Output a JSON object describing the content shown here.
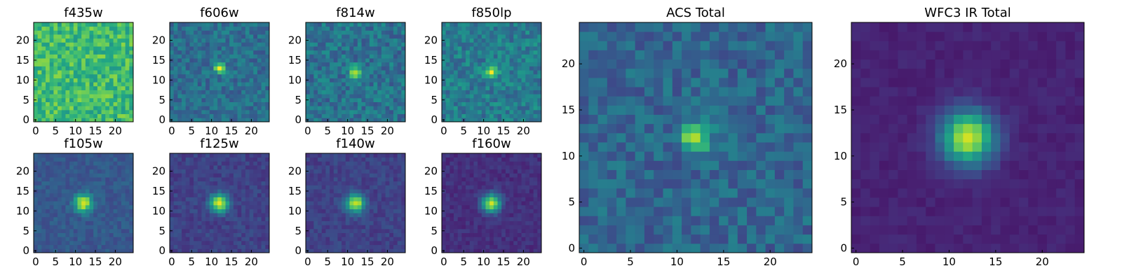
{
  "chart_data": {
    "type": "heatmap",
    "colormap": "viridis",
    "grid": false,
    "panels": [
      {
        "title": "f435w",
        "xlim": [
          0,
          24
        ],
        "ylim": [
          0,
          24
        ],
        "xticks": [
          0,
          5,
          10,
          15,
          20
        ],
        "yticks": [
          0,
          5,
          10,
          15,
          20
        ],
        "source_peak": [
          12,
          12
        ],
        "source_strength": 0.05,
        "source_sigma": 1.0,
        "background_level": 0.68,
        "noise_level": 0.3
      },
      {
        "title": "f606w",
        "xlim": [
          0,
          24
        ],
        "ylim": [
          0,
          24
        ],
        "xticks": [
          0,
          5,
          10,
          15,
          20
        ],
        "yticks": [
          0,
          5,
          10,
          15,
          20
        ],
        "source_peak": [
          12,
          13
        ],
        "source_strength": 0.62,
        "source_sigma": 0.9,
        "background_level": 0.36,
        "noise_level": 0.22
      },
      {
        "title": "f814w",
        "xlim": [
          0,
          24
        ],
        "ylim": [
          0,
          24
        ],
        "xticks": [
          0,
          5,
          10,
          15,
          20
        ],
        "yticks": [
          0,
          5,
          10,
          15,
          20
        ],
        "source_peak": [
          12,
          12
        ],
        "source_strength": 0.6,
        "source_sigma": 1.0,
        "background_level": 0.38,
        "noise_level": 0.26
      },
      {
        "title": "f850lp",
        "xlim": [
          0,
          24
        ],
        "ylim": [
          0,
          24
        ],
        "xticks": [
          0,
          5,
          10,
          15,
          20
        ],
        "yticks": [
          0,
          5,
          10,
          15,
          20
        ],
        "source_peak": [
          12,
          12
        ],
        "source_strength": 0.55,
        "source_sigma": 1.1,
        "background_level": 0.42,
        "noise_level": 0.26
      },
      {
        "title": "f105w",
        "xlim": [
          0,
          24
        ],
        "ylim": [
          0,
          24
        ],
        "xticks": [
          0,
          5,
          10,
          15,
          20
        ],
        "yticks": [
          0,
          5,
          10,
          15,
          20
        ],
        "source_peak": [
          12,
          12
        ],
        "source_strength": 0.7,
        "source_sigma": 1.5,
        "background_level": 0.28,
        "noise_level": 0.12
      },
      {
        "title": "f125w",
        "xlim": [
          0,
          24
        ],
        "ylim": [
          0,
          24
        ],
        "xticks": [
          0,
          5,
          10,
          15,
          20
        ],
        "yticks": [
          0,
          5,
          10,
          15,
          20
        ],
        "source_peak": [
          12,
          12
        ],
        "source_strength": 0.75,
        "source_sigma": 1.6,
        "background_level": 0.2,
        "noise_level": 0.12
      },
      {
        "title": "f140w",
        "xlim": [
          0,
          24
        ],
        "ylim": [
          0,
          24
        ],
        "xticks": [
          0,
          5,
          10,
          15,
          20
        ],
        "yticks": [
          0,
          5,
          10,
          15,
          20
        ],
        "source_peak": [
          12,
          12
        ],
        "source_strength": 0.75,
        "source_sigma": 1.6,
        "background_level": 0.2,
        "noise_level": 0.12
      },
      {
        "title": "f160w",
        "xlim": [
          0,
          24
        ],
        "ylim": [
          0,
          24
        ],
        "xticks": [
          0,
          5,
          10,
          15,
          20
        ],
        "yticks": [
          0,
          5,
          10,
          15,
          20
        ],
        "source_peak": [
          12,
          12
        ],
        "source_strength": 0.78,
        "source_sigma": 1.6,
        "background_level": 0.14,
        "noise_level": 0.1
      },
      {
        "title": "ACS Total",
        "xlim": [
          0,
          24
        ],
        "ylim": [
          0,
          24
        ],
        "xticks": [
          0,
          5,
          10,
          15,
          20
        ],
        "yticks": [
          0,
          5,
          10,
          15,
          20
        ],
        "source_peak": [
          12,
          12
        ],
        "source_strength": 0.62,
        "source_sigma": 1.0,
        "background_level": 0.33,
        "noise_level": 0.22
      },
      {
        "title": "WFC3 IR Total",
        "xlim": [
          0,
          24
        ],
        "ylim": [
          0,
          24
        ],
        "xticks": [
          0,
          5,
          10,
          15,
          20
        ],
        "yticks": [
          0,
          5,
          10,
          15,
          20
        ],
        "source_peak": [
          12,
          12
        ],
        "source_strength": 0.82,
        "source_sigma": 2.0,
        "background_level": 0.1,
        "noise_level": 0.06
      }
    ]
  }
}
